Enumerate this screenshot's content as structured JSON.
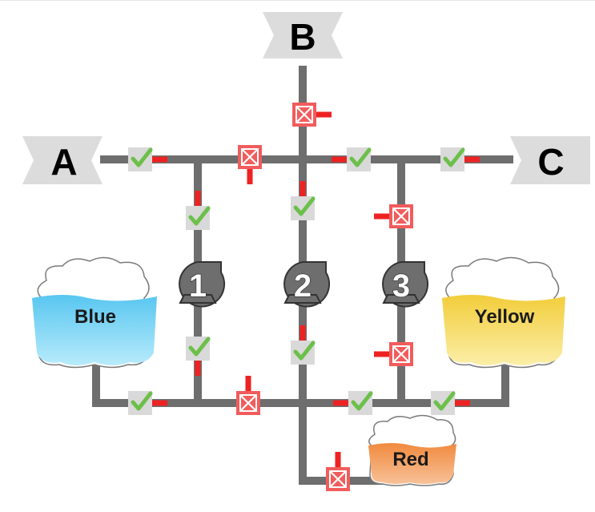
{
  "ports": {
    "a": {
      "label": "A"
    },
    "b": {
      "label": "B"
    },
    "c": {
      "label": "C"
    }
  },
  "pumps": [
    {
      "label": "1"
    },
    {
      "label": "2"
    },
    {
      "label": "3"
    }
  ],
  "tanks": {
    "blue": {
      "label": "Blue",
      "color": "#7fd3f5"
    },
    "yellow": {
      "label": "Yellow",
      "color": "#f7e071"
    },
    "red": {
      "label": "Red",
      "color": "#f5a86a"
    }
  },
  "valve_states": {
    "a_top": "open",
    "top_left_mid": "closed",
    "b_top": "closed",
    "top_right_mid": "open",
    "c_top": "open",
    "pump1_upper": "open",
    "pump2_upper": "open",
    "pump3_upper": "closed",
    "pump1_lower": "open",
    "pump2_lower": "open",
    "pump3_lower": "closed",
    "blue_out": "open",
    "bottom_mid": "closed",
    "bottom_right_mid": "open",
    "yellow_out": "open",
    "red_in": "closed"
  },
  "colors": {
    "pipe": "#6e6e6e",
    "valve_open_bg": "#d9d9d9",
    "valve_open_check": "#6cc04a",
    "valve_closed": "#f25c5c",
    "handle": "#ee2222",
    "pump_body": "#6e6e6e",
    "port_tag": "#dcdcdc"
  }
}
